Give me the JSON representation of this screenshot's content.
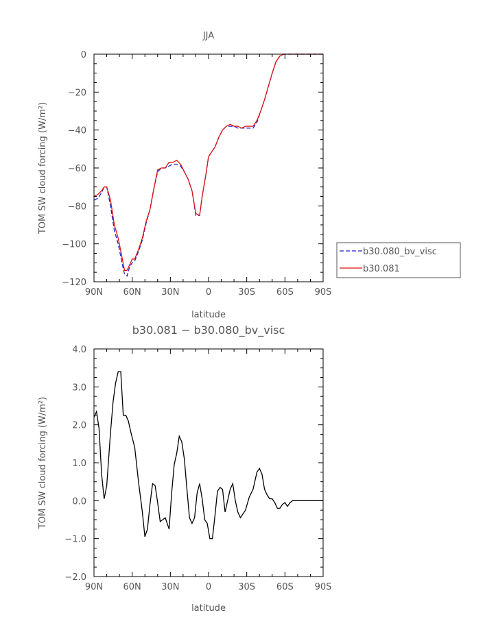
{
  "chart_data": [
    {
      "type": "line",
      "title": "JJA",
      "xlabel": "latitude",
      "ylabel": "TOM SW cloud forcing (W/m²)",
      "xlim": [
        90,
        -90
      ],
      "ylim": [
        -120,
        0
      ],
      "xticks": [
        90,
        60,
        30,
        0,
        -30,
        -60,
        -90
      ],
      "xtick_labels": [
        "90N",
        "60N",
        "30N",
        "0",
        "30S",
        "60S",
        "90S"
      ],
      "yticks": [
        0,
        -20,
        -40,
        -60,
        -80,
        -100,
        -120
      ],
      "ytick_labels": [
        "0",
        "−20",
        "−40",
        "−60",
        "−80",
        "−100",
        "−120"
      ],
      "legend_position": "right, outside plot",
      "series": [
        {
          "name": "b30.080_bv_visc",
          "color": "#1f1fd0",
          "dash": "dashed",
          "x": [
            90,
            87,
            84,
            82,
            80,
            77,
            74,
            71,
            68,
            66,
            64,
            62,
            60,
            58,
            55,
            52,
            49,
            46,
            43,
            40,
            37,
            34,
            31,
            28,
            25,
            22,
            19,
            16,
            13,
            10,
            7,
            5,
            2,
            0,
            -2,
            -5,
            -8,
            -11,
            -14,
            -17,
            -20,
            -23,
            -26,
            -29,
            -32,
            -35,
            -38,
            -41,
            -44,
            -47,
            -50,
            -53,
            -56,
            -59,
            -62,
            -65,
            -68,
            -71,
            -74,
            -77,
            -80,
            -84,
            -87,
            -90
          ],
          "y": [
            -77,
            -76,
            -73,
            -70,
            -70,
            -80,
            -93,
            -100,
            -110,
            -116,
            -117,
            -112,
            -110,
            -109,
            -104,
            -98,
            -89,
            -82,
            -71,
            -62,
            -60,
            -60,
            -59,
            -58,
            -58,
            -59,
            -62,
            -66,
            -72,
            -85,
            -85,
            -75,
            -63,
            -54,
            -52,
            -49,
            -44,
            -40,
            -38,
            -38,
            -38,
            -39,
            -39,
            -39,
            -39,
            -39,
            -36,
            -30,
            -24,
            -17,
            -10,
            -4,
            -1,
            0,
            0,
            0,
            0,
            0,
            0,
            0,
            0,
            0,
            0,
            0
          ]
        },
        {
          "name": "b30.081",
          "color": "#dd1111",
          "dash": "solid",
          "x": [
            90,
            87,
            84,
            82,
            80,
            77,
            74,
            71,
            68,
            66,
            64,
            62,
            60,
            58,
            55,
            52,
            49,
            46,
            43,
            40,
            37,
            34,
            31,
            28,
            25,
            22,
            19,
            16,
            13,
            10,
            7,
            5,
            2,
            0,
            -2,
            -5,
            -8,
            -11,
            -14,
            -17,
            -20,
            -23,
            -26,
            -29,
            -32,
            -35,
            -38,
            -41,
            -44,
            -47,
            -50,
            -53,
            -56,
            -59,
            -62,
            -65,
            -68,
            -71,
            -74,
            -77,
            -80,
            -84,
            -87,
            -90
          ],
          "y": [
            -75,
            -74,
            -72,
            -70,
            -70,
            -77,
            -90,
            -97,
            -107,
            -114,
            -114,
            -111,
            -108,
            -108,
            -103,
            -97,
            -88,
            -82,
            -71,
            -61,
            -60,
            -60,
            -57,
            -57,
            -56,
            -58,
            -62,
            -66,
            -72,
            -84,
            -85,
            -75,
            -63,
            -54,
            -52,
            -49,
            -44,
            -40,
            -38,
            -37,
            -38,
            -38,
            -39,
            -38,
            -38,
            -38,
            -35,
            -30,
            -24,
            -17,
            -10,
            -4,
            -1,
            0,
            0,
            0,
            0,
            0,
            0,
            0,
            0,
            0,
            0,
            0
          ]
        }
      ]
    },
    {
      "type": "line",
      "title": "b30.081 − b30.080_bv_visc",
      "xlabel": "latitude",
      "ylabel": "TOM SW cloud forcing (W/m²)",
      "xlim": [
        90,
        -90
      ],
      "ylim": [
        -2.0,
        4.0
      ],
      "xticks": [
        90,
        60,
        30,
        0,
        -30,
        -60,
        -90
      ],
      "xtick_labels": [
        "90N",
        "60N",
        "30N",
        "0",
        "30S",
        "60S",
        "90S"
      ],
      "yticks": [
        4.0,
        3.0,
        2.0,
        1.0,
        0.0,
        -1.0,
        -2.0
      ],
      "ytick_labels": [
        "4.0",
        "3.0",
        "2.0",
        "1.0",
        "0.0",
        "−1.0",
        "−2.0"
      ],
      "series": [
        {
          "color": "#000000",
          "dash": "solid",
          "x": [
            90,
            88,
            86,
            84,
            82,
            80,
            77,
            75,
            73,
            71,
            69,
            67,
            65,
            63,
            61,
            58,
            55,
            52,
            50,
            48,
            46,
            44,
            42,
            40,
            38,
            36,
            34,
            31,
            29,
            27,
            25,
            23,
            21,
            19,
            17,
            15,
            13,
            11,
            9,
            7,
            5,
            3,
            1,
            -1,
            -3,
            -5,
            -7,
            -9,
            -11,
            -13,
            -15,
            -17,
            -19,
            -21,
            -23,
            -25,
            -27,
            -29,
            -32,
            -35,
            -38,
            -40,
            -42,
            -44,
            -46,
            -48,
            -50,
            -52,
            -54,
            -56,
            -58,
            -60,
            -62,
            -64,
            -66,
            -68,
            -70,
            -72,
            -75,
            -80,
            -85,
            -90
          ],
          "y": [
            2.2,
            2.35,
            1.9,
            0.7,
            0.05,
            0.4,
            1.8,
            2.6,
            3.1,
            3.4,
            3.4,
            2.25,
            2.25,
            2.1,
            1.8,
            1.4,
            0.5,
            -0.3,
            -0.95,
            -0.75,
            -0.1,
            0.45,
            0.4,
            -0.05,
            -0.55,
            -0.5,
            -0.45,
            -0.75,
            0.2,
            0.95,
            1.25,
            1.7,
            1.55,
            1.1,
            0.3,
            -0.45,
            -0.6,
            -0.45,
            0.2,
            0.45,
            0.05,
            -0.5,
            -0.6,
            -1.0,
            -1.0,
            -0.4,
            0.25,
            0.35,
            0.3,
            -0.3,
            0.0,
            0.3,
            0.45,
            0.0,
            -0.3,
            -0.45,
            -0.35,
            -0.25,
            0.1,
            0.3,
            0.75,
            0.85,
            0.7,
            0.3,
            0.15,
            0.05,
            0.05,
            -0.05,
            -0.2,
            -0.2,
            -0.1,
            -0.05,
            -0.15,
            -0.05,
            0.0,
            0.0,
            0.0,
            0.0,
            0.0,
            0.0,
            0.0,
            0.0
          ]
        }
      ]
    }
  ]
}
